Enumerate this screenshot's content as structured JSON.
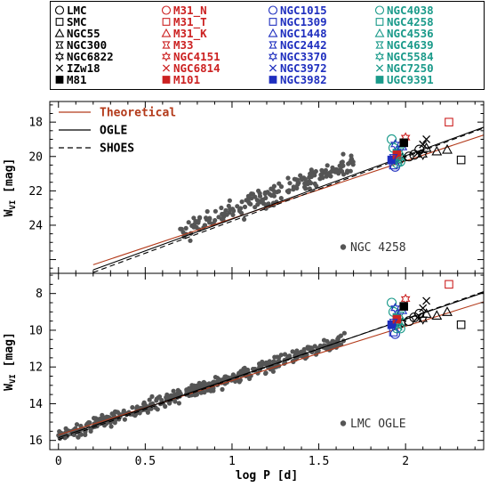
{
  "legend": {
    "columns": [
      {
        "color": "#000000",
        "entries": [
          {
            "label": "LMC",
            "marker": "circle-open"
          },
          {
            "label": "SMC",
            "marker": "square-open"
          },
          {
            "label": "NGC55",
            "marker": "triangle-open"
          },
          {
            "label": "NGC300",
            "marker": "cross4"
          },
          {
            "label": "NGC6822",
            "marker": "star-open"
          },
          {
            "label": "IZw18",
            "marker": "x"
          },
          {
            "label": "M81",
            "marker": "square-filled"
          }
        ]
      },
      {
        "color": "#cc2222",
        "entries": [
          {
            "label": "M31_N",
            "marker": "circle-open"
          },
          {
            "label": "M31_T",
            "marker": "square-open"
          },
          {
            "label": "M31_K",
            "marker": "triangle-open"
          },
          {
            "label": "M33",
            "marker": "cross4"
          },
          {
            "label": "NGC4151",
            "marker": "star-open"
          },
          {
            "label": "NGC6814",
            "marker": "x"
          },
          {
            "label": "M101",
            "marker": "square-filled"
          }
        ]
      },
      {
        "color": "#1f2fbf",
        "entries": [
          {
            "label": "NGC1015",
            "marker": "circle-open"
          },
          {
            "label": "NGC1309",
            "marker": "square-open"
          },
          {
            "label": "NGC1448",
            "marker": "triangle-open"
          },
          {
            "label": "NGC2442",
            "marker": "cross4"
          },
          {
            "label": "NGC3370",
            "marker": "star-open"
          },
          {
            "label": "NGC3972",
            "marker": "x"
          },
          {
            "label": "NGC3982",
            "marker": "square-filled"
          }
        ]
      },
      {
        "color": "#1a9a8a",
        "entries": [
          {
            "label": "NGC4038",
            "marker": "circle-open"
          },
          {
            "label": "NGC4258",
            "marker": "square-open"
          },
          {
            "label": "NGC4536",
            "marker": "triangle-open"
          },
          {
            "label": "NGC4639",
            "marker": "cross4"
          },
          {
            "label": "NGC5584",
            "marker": "star-open"
          },
          {
            "label": "NGC7250",
            "marker": "x"
          },
          {
            "label": "UGC9391",
            "marker": "square-filled"
          }
        ]
      }
    ]
  },
  "chart_data": [
    {
      "type": "scatter",
      "xlabel": "",
      "ylabel": "W_VI [mag]",
      "ylabel_main": "W",
      "ylabel_sub": "VI",
      "ylabel_unit": " [mag]",
      "xlim": [
        -0.05,
        2.45
      ],
      "ylim": [
        26.8,
        16.8
      ],
      "yticks": [
        18,
        20,
        22,
        24
      ],
      "annotation": "NGC 4258",
      "annotation_color": "#555555",
      "lines": [
        {
          "name": "Theoretical",
          "color": "#b33a1a",
          "dash": "",
          "x": [
            0.2,
            2.45
          ],
          "y": [
            26.3,
            18.75
          ]
        },
        {
          "name": "OGLE",
          "color": "#000000",
          "dash": "",
          "x": [
            0.2,
            2.45
          ],
          "y": [
            26.6,
            18.3
          ]
        },
        {
          "name": "SHOES",
          "color": "#000000",
          "dash": "6,4",
          "x": [
            0.2,
            2.45
          ],
          "y": [
            26.75,
            18.35
          ]
        }
      ],
      "scatter_cloud": {
        "color": "#555555",
        "x_range": [
          0.7,
          1.7
        ],
        "y_at_x_start": 24.4,
        "y_at_x_end": 20.3,
        "scatter": 0.35,
        "n": 190
      },
      "galaxy_points": [
        {
          "x": 2.25,
          "y": 18.0,
          "marker": "square-open",
          "color": "#cc2222"
        },
        {
          "x": 2.32,
          "y": 20.2,
          "marker": "square-open",
          "color": "#000000"
        },
        {
          "x": 2.12,
          "y": 19.5,
          "marker": "triangle-open",
          "color": "#000000"
        },
        {
          "x": 2.18,
          "y": 19.7,
          "marker": "triangle-open",
          "color": "#000000"
        },
        {
          "x": 2.24,
          "y": 19.6,
          "marker": "triangle-open",
          "color": "#000000"
        },
        {
          "x": 2.0,
          "y": 18.9,
          "marker": "star-open",
          "color": "#cc2222"
        },
        {
          "x": 2.05,
          "y": 19.9,
          "marker": "circle-open",
          "color": "#000000"
        },
        {
          "x": 2.02,
          "y": 20.0,
          "marker": "circle-open",
          "color": "#000000"
        },
        {
          "x": 2.08,
          "y": 19.6,
          "marker": "circle-open",
          "color": "#000000"
        },
        {
          "x": 2.1,
          "y": 19.3,
          "marker": "x",
          "color": "#000000"
        },
        {
          "x": 2.12,
          "y": 19.0,
          "marker": "x",
          "color": "#000000"
        },
        {
          "x": 2.07,
          "y": 19.8,
          "marker": "x",
          "color": "#000000"
        },
        {
          "x": 2.1,
          "y": 19.9,
          "marker": "star-open",
          "color": "#000000"
        },
        {
          "x": 1.98,
          "y": 20.1,
          "marker": "star-open",
          "color": "#000000"
        },
        {
          "x": 1.92,
          "y": 19.0,
          "marker": "circle-open",
          "color": "#1a9a8a"
        },
        {
          "x": 1.93,
          "y": 19.5,
          "marker": "circle-open",
          "color": "#1a9a8a"
        },
        {
          "x": 1.95,
          "y": 20.4,
          "marker": "circle-open",
          "color": "#1a9a8a"
        },
        {
          "x": 1.93,
          "y": 20.5,
          "marker": "square-open",
          "color": "#1f2fbf"
        },
        {
          "x": 1.94,
          "y": 20.6,
          "marker": "circle-open",
          "color": "#1f2fbf"
        },
        {
          "x": 1.95,
          "y": 19.8,
          "marker": "square-filled",
          "color": "#1a9a8a"
        },
        {
          "x": 1.96,
          "y": 20.0,
          "marker": "triangle-open",
          "color": "#1a9a8a"
        },
        {
          "x": 1.97,
          "y": 19.7,
          "marker": "cross4",
          "color": "#1a9a8a"
        },
        {
          "x": 1.94,
          "y": 19.3,
          "marker": "star-open",
          "color": "#1f2fbf"
        },
        {
          "x": 1.96,
          "y": 20.3,
          "marker": "x",
          "color": "#1a9a8a"
        },
        {
          "x": 1.92,
          "y": 20.2,
          "marker": "square-filled",
          "color": "#1f2fbf"
        },
        {
          "x": 1.98,
          "y": 19.4,
          "marker": "triangle-open",
          "color": "#1f2fbf"
        },
        {
          "x": 1.95,
          "y": 19.9,
          "marker": "square-filled",
          "color": "#cc2222"
        },
        {
          "x": 1.93,
          "y": 20.1,
          "marker": "cross4",
          "color": "#1f2fbf"
        },
        {
          "x": 1.99,
          "y": 19.2,
          "marker": "square-filled",
          "color": "#000000"
        },
        {
          "x": 1.97,
          "y": 20.3,
          "marker": "circle-open",
          "color": "#1a9a8a"
        }
      ]
    },
    {
      "type": "scatter",
      "xlabel": "log P [d]",
      "ylabel": "W_VI [mag]",
      "ylabel_main": "W",
      "ylabel_sub": "VI",
      "ylabel_unit": " [mag]",
      "xlim": [
        -0.05,
        2.45
      ],
      "ylim": [
        16.5,
        6.9
      ],
      "yticks": [
        8,
        10,
        12,
        14,
        16
      ],
      "xticks": [
        0,
        0.5,
        1,
        1.5,
        2
      ],
      "xticklabels": [
        "0",
        "0.5",
        "1",
        "1.5",
        "2"
      ],
      "annotation": "LMC OGLE",
      "annotation_color": "#555555",
      "lines": [
        {
          "name": "Theoretical",
          "color": "#b33a1a",
          "dash": "",
          "x": [
            0.0,
            2.45
          ],
          "y": [
            15.7,
            8.45
          ]
        },
        {
          "name": "OGLE",
          "color": "#000000",
          "dash": "",
          "x": [
            0.0,
            2.45
          ],
          "y": [
            15.85,
            7.95
          ]
        },
        {
          "name": "SHOES",
          "color": "#000000",
          "dash": "6,4",
          "x": [
            0.0,
            2.45
          ],
          "y": [
            15.95,
            7.9
          ]
        }
      ],
      "scatter_cloud": {
        "color": "#555555",
        "x_range": [
          0.0,
          1.65
        ],
        "y_at_x_start": 15.8,
        "y_at_x_end": 10.5,
        "scatter": 0.22,
        "n": 420
      },
      "galaxy_points": [
        {
          "x": 2.25,
          "y": 7.5,
          "marker": "square-open",
          "color": "#cc2222"
        },
        {
          "x": 2.32,
          "y": 9.7,
          "marker": "square-open",
          "color": "#000000"
        },
        {
          "x": 2.12,
          "y": 9.1,
          "marker": "triangle-open",
          "color": "#000000"
        },
        {
          "x": 2.18,
          "y": 9.2,
          "marker": "triangle-open",
          "color": "#000000"
        },
        {
          "x": 2.24,
          "y": 9.0,
          "marker": "triangle-open",
          "color": "#000000"
        },
        {
          "x": 2.0,
          "y": 8.3,
          "marker": "star-open",
          "color": "#cc2222"
        },
        {
          "x": 2.05,
          "y": 9.3,
          "marker": "circle-open",
          "color": "#000000"
        },
        {
          "x": 2.02,
          "y": 9.5,
          "marker": "circle-open",
          "color": "#000000"
        },
        {
          "x": 2.08,
          "y": 9.1,
          "marker": "circle-open",
          "color": "#000000"
        },
        {
          "x": 2.1,
          "y": 8.8,
          "marker": "x",
          "color": "#000000"
        },
        {
          "x": 2.12,
          "y": 8.4,
          "marker": "x",
          "color": "#000000"
        },
        {
          "x": 2.07,
          "y": 9.3,
          "marker": "x",
          "color": "#000000"
        },
        {
          "x": 2.1,
          "y": 9.4,
          "marker": "star-open",
          "color": "#000000"
        },
        {
          "x": 1.98,
          "y": 9.6,
          "marker": "star-open",
          "color": "#000000"
        },
        {
          "x": 1.92,
          "y": 8.5,
          "marker": "circle-open",
          "color": "#1a9a8a"
        },
        {
          "x": 1.93,
          "y": 9.0,
          "marker": "circle-open",
          "color": "#1a9a8a"
        },
        {
          "x": 1.95,
          "y": 9.9,
          "marker": "circle-open",
          "color": "#1a9a8a"
        },
        {
          "x": 1.93,
          "y": 10.1,
          "marker": "square-open",
          "color": "#1f2fbf"
        },
        {
          "x": 1.94,
          "y": 10.2,
          "marker": "circle-open",
          "color": "#1f2fbf"
        },
        {
          "x": 1.95,
          "y": 9.3,
          "marker": "square-filled",
          "color": "#1a9a8a"
        },
        {
          "x": 1.96,
          "y": 9.5,
          "marker": "triangle-open",
          "color": "#1a9a8a"
        },
        {
          "x": 1.97,
          "y": 9.2,
          "marker": "cross4",
          "color": "#1a9a8a"
        },
        {
          "x": 1.94,
          "y": 8.8,
          "marker": "star-open",
          "color": "#1f2fbf"
        },
        {
          "x": 1.96,
          "y": 9.8,
          "marker": "x",
          "color": "#1a9a8a"
        },
        {
          "x": 1.92,
          "y": 9.7,
          "marker": "square-filled",
          "color": "#1f2fbf"
        },
        {
          "x": 1.98,
          "y": 8.9,
          "marker": "triangle-open",
          "color": "#1f2fbf"
        },
        {
          "x": 1.95,
          "y": 9.4,
          "marker": "square-filled",
          "color": "#cc2222"
        },
        {
          "x": 1.93,
          "y": 9.6,
          "marker": "cross4",
          "color": "#1f2fbf"
        },
        {
          "x": 1.99,
          "y": 8.7,
          "marker": "square-filled",
          "color": "#000000"
        },
        {
          "x": 1.97,
          "y": 9.9,
          "marker": "circle-open",
          "color": "#1a9a8a"
        }
      ]
    }
  ]
}
